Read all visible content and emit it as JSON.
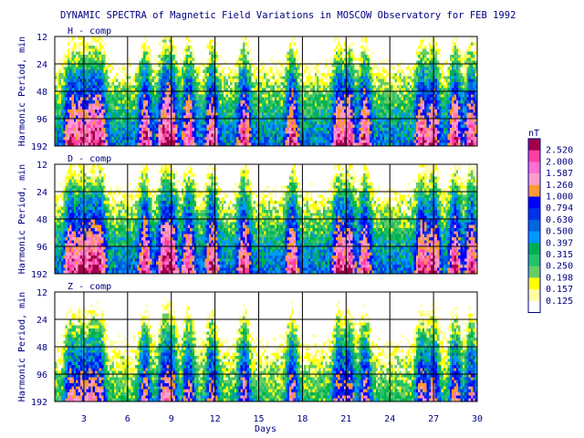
{
  "chart_data": {
    "type": "heatmap",
    "title": "DYNAMIC SPECTRA of Magnetic Field Variations in MOSCOW Observatory for FEB 1992",
    "xlabel": "Days",
    "ylabel": "Harmonic Period, min",
    "x_range": [
      1,
      30
    ],
    "x_ticks": [
      "3",
      "6",
      "9",
      "12",
      "15",
      "18",
      "21",
      "24",
      "27",
      "30"
    ],
    "y_ticks": [
      "12",
      "24",
      "48",
      "96",
      "192"
    ],
    "y_scale": "log2",
    "grid": true,
    "legend_position": "right",
    "colorbar": {
      "unit": "nT",
      "levels": [
        "2.520",
        "2.000",
        "1.587",
        "1.260",
        "1.000",
        "0.794",
        "0.630",
        "0.500",
        "0.397",
        "0.315",
        "0.250",
        "0.198",
        "0.157",
        "0.125"
      ],
      "colors": [
        "#a0004a",
        "#ff3fa0",
        "#ff70d0",
        "#ff9ec8",
        "#ff9933",
        "#0000ff",
        "#0033e6",
        "#0066dd",
        "#0099ff",
        "#00b050",
        "#23c26a",
        "#66cc66",
        "#ffff00",
        "#ffffa0",
        "#ffffff"
      ]
    },
    "panels": [
      {
        "label": "H - comp",
        "level_scale": 1.0
      },
      {
        "label": "D - comp",
        "level_scale": 1.05
      },
      {
        "label": "Z - comp",
        "level_scale": 0.55
      }
    ]
  }
}
